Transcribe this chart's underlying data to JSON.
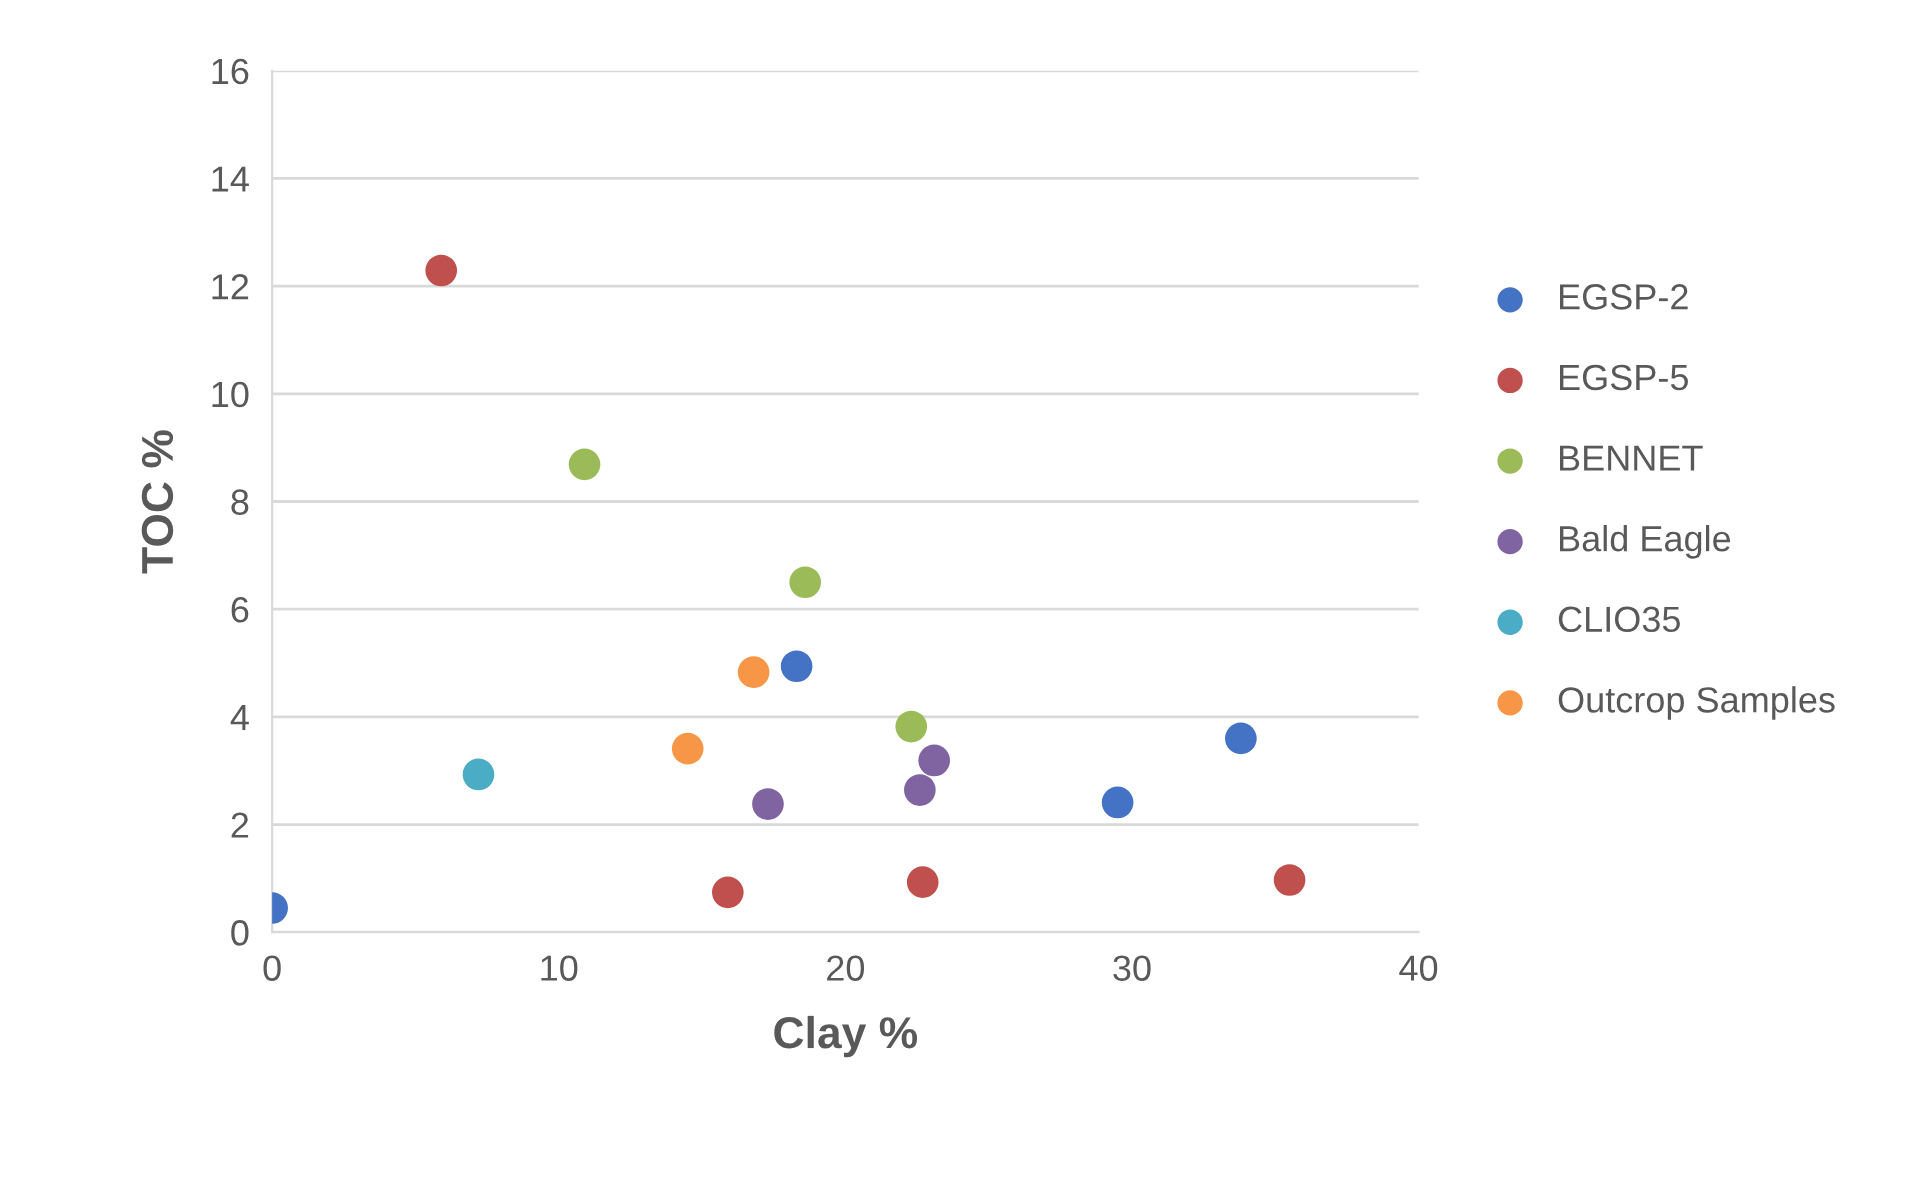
{
  "chart_data": {
    "type": "scatter",
    "xlabel": "Clay %",
    "ylabel": "TOC %",
    "xlim": [
      0,
      40
    ],
    "xticks": [
      0,
      10,
      20,
      30,
      40
    ],
    "ylim": [
      0,
      16
    ],
    "yticks": [
      0,
      2,
      4,
      6,
      8,
      10,
      12,
      14,
      16
    ],
    "grid": "y",
    "legend": "right",
    "marker": "circle",
    "series": [
      {
        "name": "EGSP-2",
        "color": "#4472c4",
        "x": [
          0,
          18.3,
          29.5,
          33.8
        ],
        "values": [
          0.45,
          4.94,
          2.41,
          3.6
        ]
      },
      {
        "name": "EGSP-5",
        "color": "#c0504d",
        "x": [
          5.9,
          15.9,
          22.7,
          35.5
        ],
        "values": [
          12.29,
          0.74,
          0.93,
          0.97
        ]
      },
      {
        "name": "BENNET",
        "color": "#9bbb59",
        "x": [
          10.9,
          18.6,
          22.3
        ],
        "values": [
          8.69,
          6.5,
          3.82
        ]
      },
      {
        "name": "Bald Eagle",
        "color": "#8064a2",
        "x": [
          17.3,
          22.6,
          23.1
        ],
        "values": [
          2.38,
          2.64,
          3.19
        ]
      },
      {
        "name": "CLIO35",
        "color": "#4bacc6",
        "x": [
          7.2
        ],
        "values": [
          2.93
        ]
      },
      {
        "name": "Outcrop Samples",
        "color": "#f79646",
        "x": [
          14.5,
          16.8
        ],
        "values": [
          3.41,
          4.83
        ]
      }
    ]
  }
}
